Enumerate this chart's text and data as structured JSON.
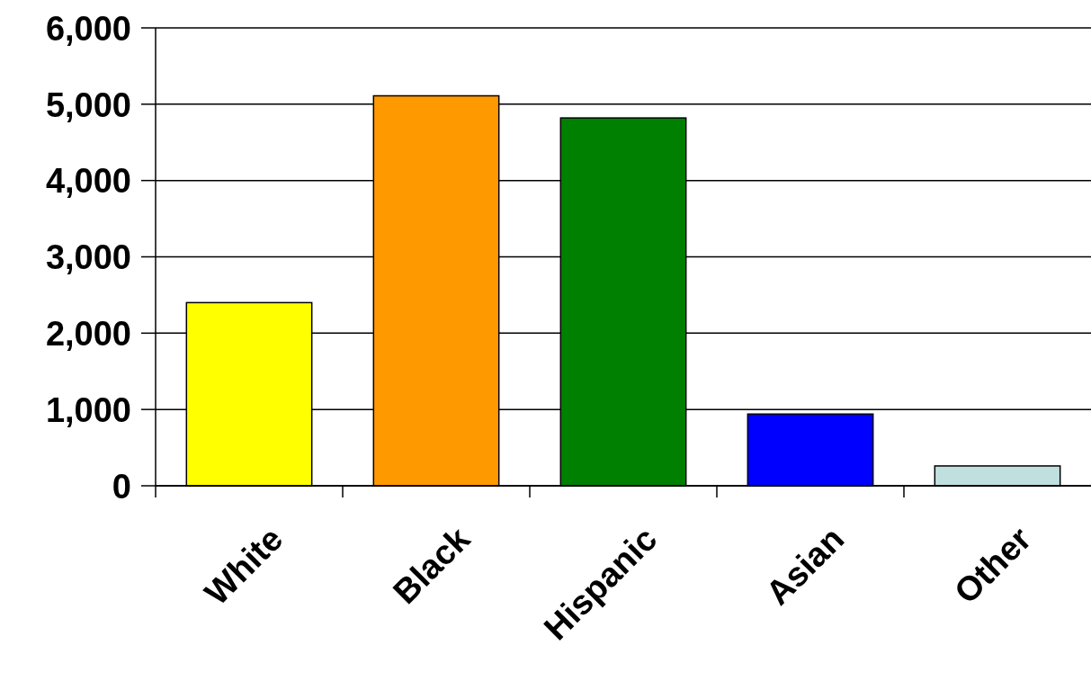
{
  "chart_data": {
    "type": "bar",
    "categories": [
      "White",
      "Black",
      "Hispanic",
      "Asian",
      "Other"
    ],
    "values": [
      2400,
      5110,
      4820,
      940,
      260
    ],
    "colors": [
      "#ffff00",
      "#ff9900",
      "#008000",
      "#0000ff",
      "#c0e0e0"
    ],
    "ylim": [
      0,
      6000
    ],
    "yticks": [
      {
        "value": 0,
        "label": "0"
      },
      {
        "value": 1000,
        "label": "1,000"
      },
      {
        "value": 2000,
        "label": "2,000"
      },
      {
        "value": 3000,
        "label": "3,000"
      },
      {
        "value": 4000,
        "label": "4,000"
      },
      {
        "value": 5000,
        "label": "5,000"
      },
      {
        "value": 6000,
        "label": "6,000"
      }
    ],
    "grid": "y"
  }
}
